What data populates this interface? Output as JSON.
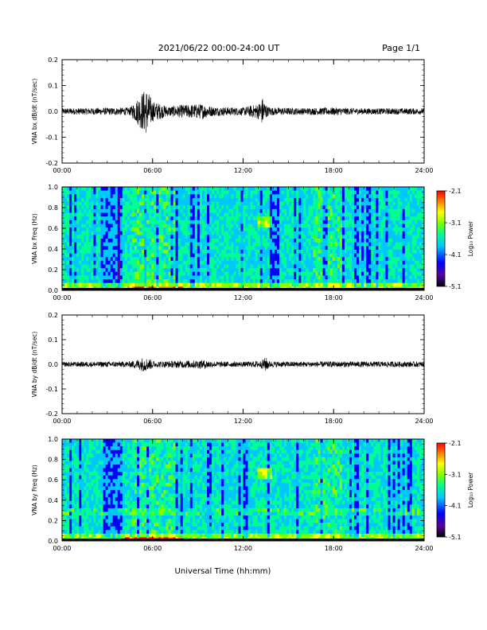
{
  "header": {
    "date_range": "2021/06/22  00:00-24:00 UT",
    "page": "Page 1/1"
  },
  "x_axis_label": "Universal Time (hh:mm)",
  "colors": {
    "trace": "#000000",
    "spectrogram_background": "#1e7ff0",
    "colormap": [
      "#000000",
      "#5a00a0",
      "#0000ff",
      "#00c8ff",
      "#00ff90",
      "#80ff00",
      "#ffff00",
      "#ff8000",
      "#ff0000"
    ]
  },
  "chart_data": [
    {
      "type": "line",
      "ylabel": "VNA bx dB/dt (nT/sec)",
      "xlim": [
        0,
        24
      ],
      "ylim": [
        -0.2,
        0.2
      ],
      "x_ticks": [
        "00:00",
        "06:00",
        "12:00",
        "18:00",
        "24:00"
      ],
      "y_ticks": [
        "0.2",
        "0.1",
        "0.0",
        "-0.1",
        "-0.2"
      ],
      "activity_envelope": {
        "x_hours": [
          0,
          4.5,
          5.0,
          5.3,
          5.6,
          6.0,
          7.0,
          8.0,
          9.3,
          10.0,
          12.0,
          13.0,
          13.3,
          13.6,
          14.0,
          16.0,
          18.0,
          20.0,
          24.0
        ],
        "amplitude": [
          0.012,
          0.015,
          0.05,
          0.075,
          0.09,
          0.04,
          0.02,
          0.025,
          0.03,
          0.018,
          0.015,
          0.03,
          0.055,
          0.02,
          0.015,
          0.013,
          0.015,
          0.012,
          0.012
        ]
      }
    },
    {
      "type": "heatmap",
      "ylabel": "VNA bx Freq (Hz)",
      "xlim": [
        0,
        24
      ],
      "ylim": [
        0,
        1.0
      ],
      "x_ticks": [
        "00:00",
        "06:00",
        "12:00",
        "18:00",
        "24:00"
      ],
      "y_ticks": [
        "1.0",
        "0.8",
        "0.6",
        "0.4",
        "0.2",
        "0.0"
      ],
      "colorbar_label": "Log₁₀ Power",
      "colorbar_ticks": [
        "-2.1",
        "-3.1",
        "-4.1",
        "-5.1"
      ],
      "colorbar_range": [
        -5.1,
        -2.1
      ]
    },
    {
      "type": "line",
      "ylabel": "VNA by dB/dt (nT/sec)",
      "xlim": [
        0,
        24
      ],
      "ylim": [
        -0.2,
        0.2
      ],
      "x_ticks": [
        "00:00",
        "06:00",
        "12:00",
        "18:00",
        "24:00"
      ],
      "y_ticks": [
        "0.2",
        "0.1",
        "0.0",
        "-0.1",
        "-0.2"
      ],
      "activity_envelope": {
        "x_hours": [
          0,
          4.5,
          5.0,
          5.4,
          5.8,
          6.2,
          9.5,
          10.0,
          12.0,
          13.2,
          13.5,
          13.8,
          16.0,
          18.0,
          24.0
        ],
        "amplitude": [
          0.01,
          0.012,
          0.02,
          0.03,
          0.022,
          0.012,
          0.018,
          0.012,
          0.01,
          0.015,
          0.03,
          0.012,
          0.011,
          0.012,
          0.011
        ]
      }
    },
    {
      "type": "heatmap",
      "ylabel": "VNA by Freq (Hz)",
      "xlim": [
        0,
        24
      ],
      "ylim": [
        0,
        1.0
      ],
      "x_ticks": [
        "00:00",
        "06:00",
        "12:00",
        "18:00",
        "24:00"
      ],
      "y_ticks": [
        "1.0",
        "0.8",
        "0.6",
        "0.4",
        "0.2",
        "0.0"
      ],
      "colorbar_label": "Log₁₀ Power",
      "colorbar_ticks": [
        "-2.1",
        "-3.1",
        "-4.1",
        "-5.1"
      ],
      "colorbar_range": [
        -5.1,
        -2.1
      ]
    }
  ]
}
